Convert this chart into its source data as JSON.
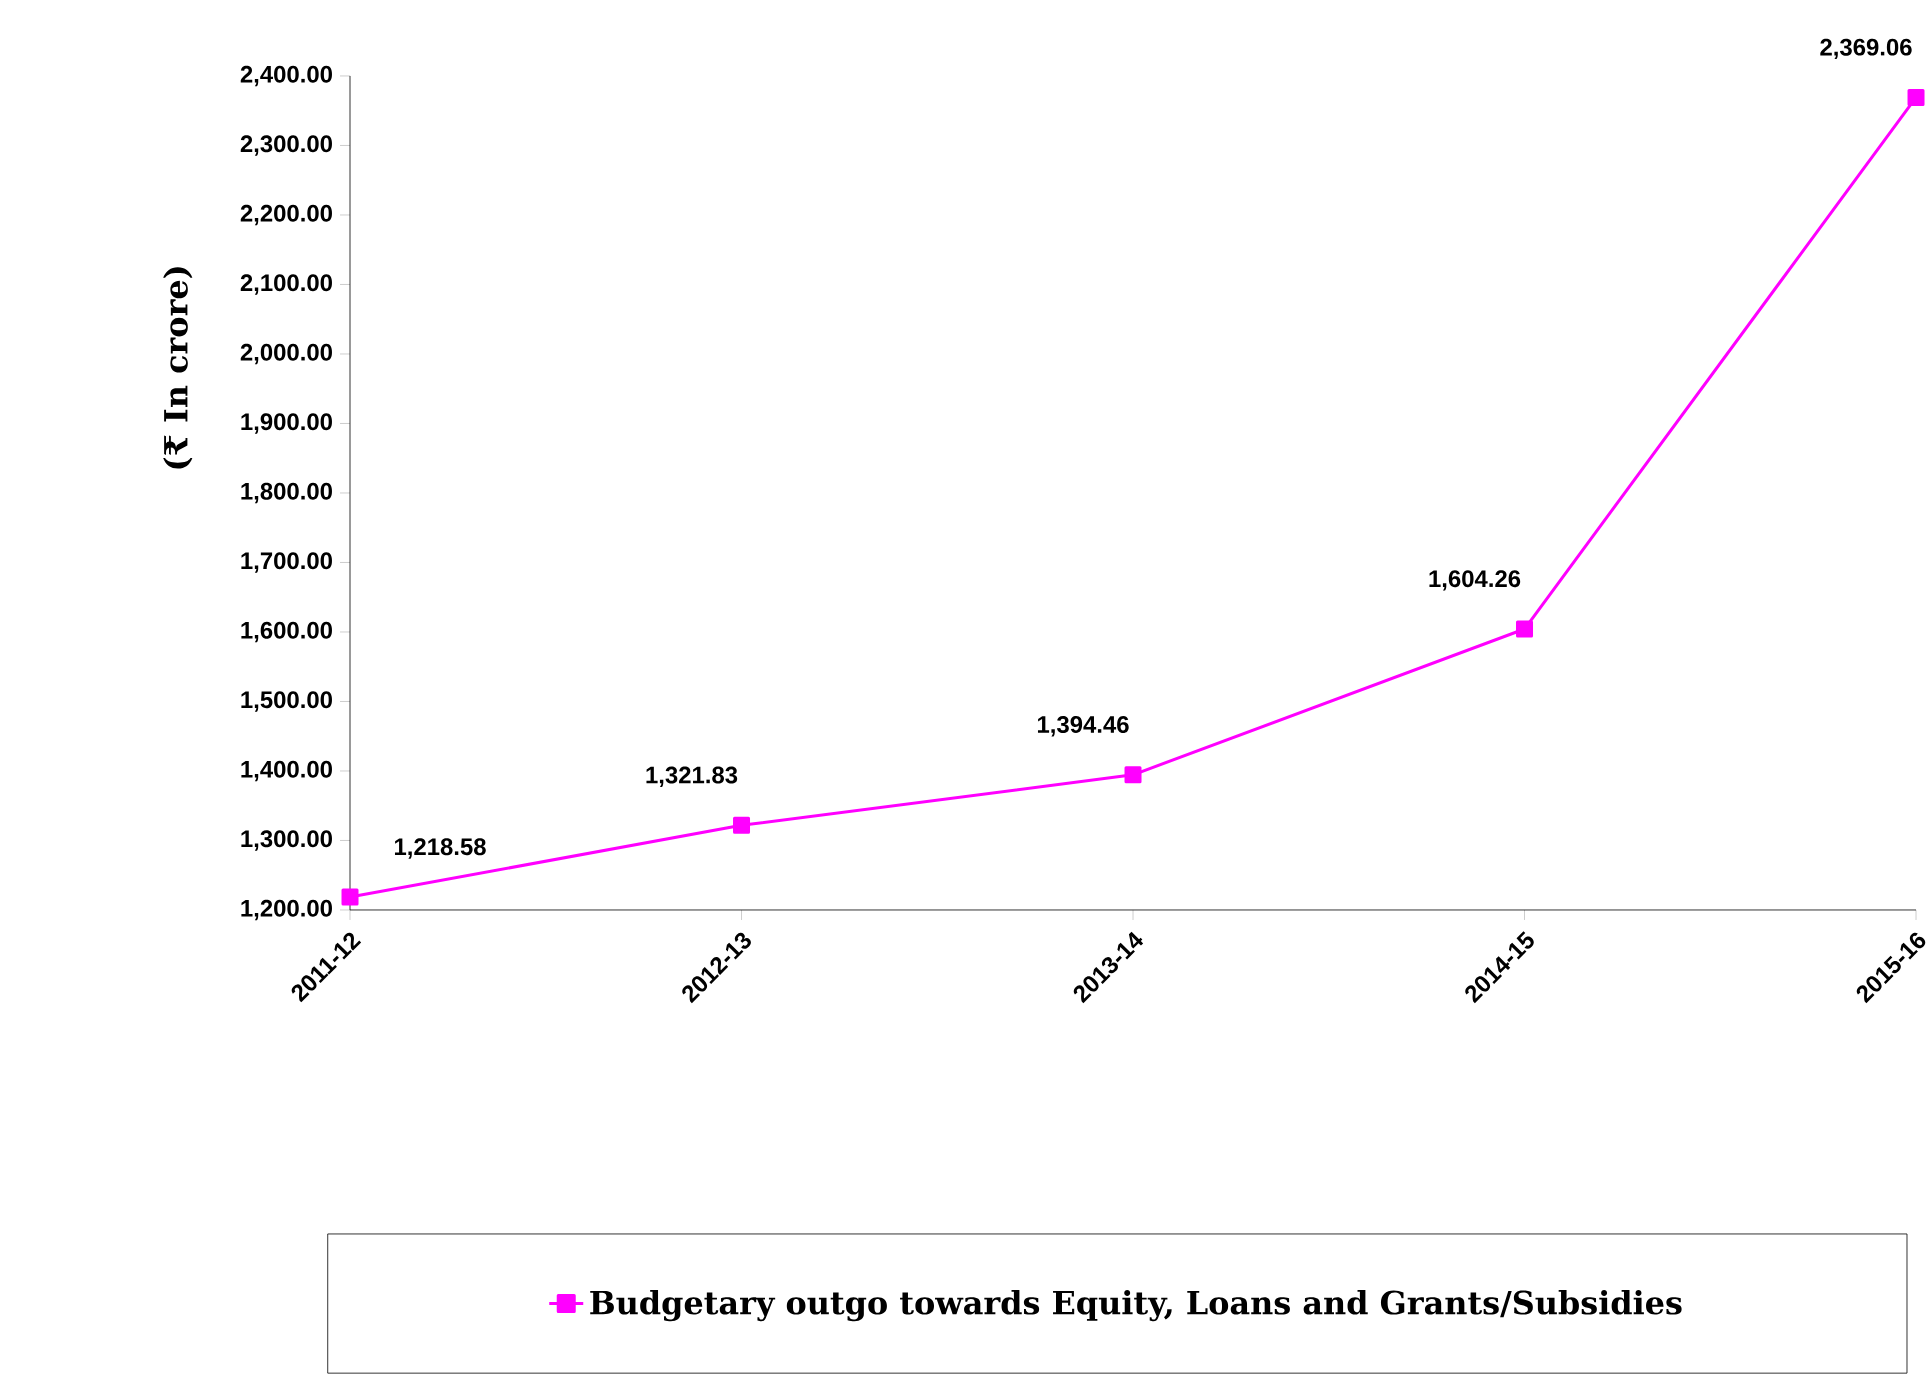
{
  "chart_data": {
    "type": "line",
    "ylabel": "(₹ In crore)",
    "categories": [
      "2011-12",
      "2012-13",
      "2013-14",
      "2014-15",
      "2015-16"
    ],
    "series": [
      {
        "name": "Budgetary outgo towards Equity, Loans and Grants/Subsidies",
        "color": "#ff00ff",
        "values": [
          1218.58,
          1321.83,
          1394.46,
          1604.26,
          2369.06
        ],
        "value_labels": [
          "1,218.58",
          "1,321.83",
          "1,394.46",
          "1,604.26",
          "2,369.06"
        ]
      }
    ],
    "ylim": [
      1200,
      2400
    ],
    "yticks": [
      {
        "value": 1200,
        "label": "1,200.00"
      },
      {
        "value": 1300,
        "label": "1,300.00"
      },
      {
        "value": 1400,
        "label": "1,400.00"
      },
      {
        "value": 1500,
        "label": "1,500.00"
      },
      {
        "value": 1600,
        "label": "1,600.00"
      },
      {
        "value": 1700,
        "label": "1,700.00"
      },
      {
        "value": 1800,
        "label": "1,800.00"
      },
      {
        "value": 1900,
        "label": "1,900.00"
      },
      {
        "value": 2000,
        "label": "2,000.00"
      },
      {
        "value": 2100,
        "label": "2,100.00"
      },
      {
        "value": 2200,
        "label": "2,200.00"
      },
      {
        "value": 2300,
        "label": "2,300.00"
      },
      {
        "value": 2400,
        "label": "2,400.00"
      }
    ],
    "grid": false,
    "legend": "bottom",
    "marker": "square",
    "line_style": "solid"
  }
}
